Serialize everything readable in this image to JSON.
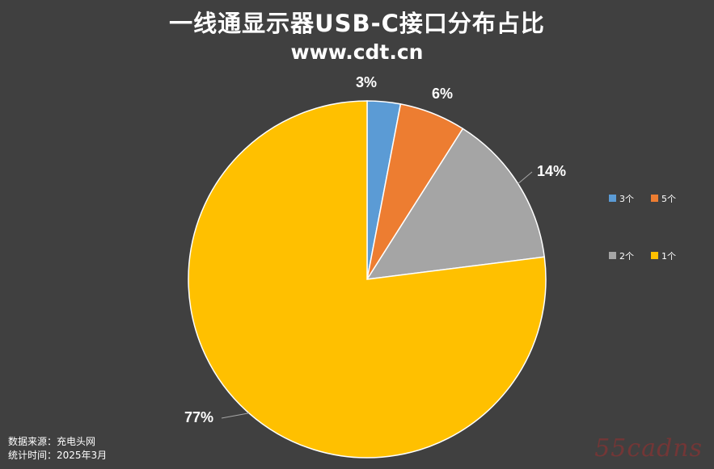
{
  "title": "一线通显示器USB-C接口分布占比",
  "subtitle": "www.cdt.cn",
  "footer": {
    "source": "数据来源：充电头网",
    "date": "统计时间：2025年3月"
  },
  "watermark": "55cadns",
  "chart_data": {
    "type": "pie",
    "title": "一线通显示器USB-C接口分布占比",
    "subtitle": "www.cdt.cn",
    "slices": [
      {
        "label": "3个",
        "value": 3,
        "value_label": "3%",
        "color": "#5B9BD5"
      },
      {
        "label": "5个",
        "value": 6,
        "value_label": "6%",
        "color": "#ED7D31"
      },
      {
        "label": "2个",
        "value": 14,
        "value_label": "14%",
        "color": "#A5A5A5"
      },
      {
        "label": "1个",
        "value": 77,
        "value_label": "77%",
        "color": "#FFC000"
      }
    ],
    "start_angle": "12 o'clock, clockwise",
    "legend_position": "right",
    "show_data_labels": true
  }
}
